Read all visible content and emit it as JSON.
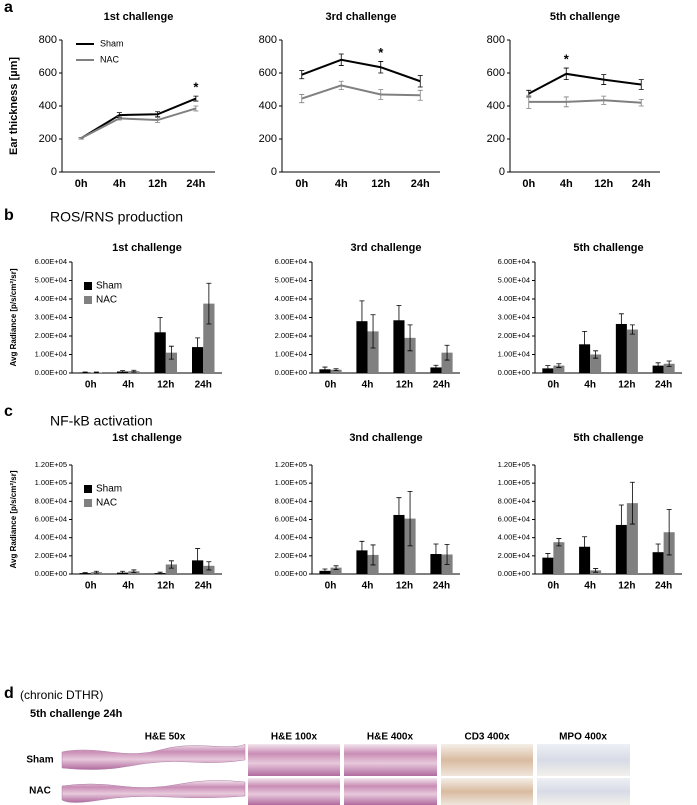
{
  "panels": [
    {
      "letter": "a"
    },
    {
      "letter": "b",
      "title": "ROS/RNS production"
    },
    {
      "letter": "c",
      "title": "NF-kB activation"
    },
    {
      "letter": "d",
      "title": "(chronic DTHR)",
      "subtitle": "5th challenge 24h",
      "columns": [
        "H&E 50x",
        "H&E 100x",
        "H&E 400x",
        "CD3 400x",
        "MPO 400x"
      ],
      "rows": [
        "Sham",
        "NAC"
      ]
    }
  ],
  "chart_data": [
    {
      "type": "line",
      "title": "1st challenge",
      "y_label": "Ear thickness [µm]",
      "categories": [
        "0h",
        "4h",
        "12h",
        "24h"
      ],
      "legend": "upper left",
      "series": [
        {
          "name": "Sham",
          "color": "#000000",
          "values": [
            205,
            345,
            350,
            445
          ],
          "errors": [
            5,
            15,
            15,
            15
          ]
        },
        {
          "name": "NAC",
          "color": "#808080",
          "values": [
            205,
            325,
            315,
            385
          ],
          "errors": [
            5,
            10,
            15,
            15
          ]
        }
      ],
      "ylim": [
        0,
        800
      ],
      "yticks": [
        0,
        200,
        400,
        600,
        800
      ],
      "annotations": [
        {
          "text": "*",
          "x": "24h"
        }
      ]
    },
    {
      "type": "line",
      "title": "3rd challenge",
      "categories": [
        "0h",
        "4h",
        "12h",
        "24h"
      ],
      "series": [
        {
          "color": "#000000",
          "values": [
            590,
            680,
            635,
            550
          ],
          "errors": [
            25,
            35,
            35,
            35
          ]
        },
        {
          "color": "#808080",
          "values": [
            445,
            525,
            470,
            465
          ],
          "errors": [
            25,
            25,
            30,
            30
          ]
        }
      ],
      "ylim": [
        0,
        800
      ],
      "yticks": [
        0,
        200,
        400,
        600,
        800
      ],
      "annotations": [
        {
          "text": "*",
          "x": "12h"
        }
      ]
    },
    {
      "type": "line",
      "title": "5th challenge",
      "categories": [
        "0h",
        "4h",
        "12h",
        "24h"
      ],
      "series": [
        {
          "color": "#000000",
          "values": [
            475,
            595,
            560,
            530
          ],
          "errors": [
            20,
            35,
            30,
            30
          ]
        },
        {
          "color": "#808080",
          "values": [
            425,
            425,
            435,
            420
          ],
          "errors": [
            40,
            30,
            25,
            20
          ]
        }
      ],
      "ylim": [
        0,
        800
      ],
      "yticks": [
        0,
        200,
        400,
        600,
        800
      ],
      "annotations": [
        {
          "text": "*",
          "x": "4h"
        }
      ]
    },
    {
      "type": "bar",
      "title": "1st challenge",
      "y_label": "Avg Radiance [p/s/cm²/sr]",
      "categories": [
        "0h",
        "4h",
        "12h",
        "24h"
      ],
      "legend": "upper left",
      "series": [
        {
          "name": "Sham",
          "color": "#000000",
          "values": [
            300,
            800,
            22000,
            14000
          ],
          "errors": [
            200,
            500,
            8000,
            5000
          ]
        },
        {
          "name": "NAC",
          "color": "#808080",
          "values": [
            300,
            1000,
            11000,
            37500
          ],
          "errors": [
            200,
            500,
            3500,
            11000
          ]
        }
      ],
      "ylim": [
        0,
        60000
      ],
      "yticks": [
        {
          "value": 0,
          "label": "0.00E+00"
        },
        {
          "value": 10000,
          "label": "1.00E+04"
        },
        {
          "value": 20000,
          "label": "2.00E+04"
        },
        {
          "value": 30000,
          "label": "3.00E+04"
        },
        {
          "value": 40000,
          "label": "4.00E+04"
        },
        {
          "value": 50000,
          "label": "5.00E+04"
        },
        {
          "value": 60000,
          "label": "6.00E+04"
        }
      ]
    },
    {
      "type": "bar",
      "title": "3rd challenge",
      "categories": [
        "0h",
        "4h",
        "12h",
        "24h"
      ],
      "series": [
        {
          "color": "#000000",
          "values": [
            2000,
            28000,
            28500,
            3000
          ],
          "errors": [
            1200,
            11000,
            8000,
            1200
          ]
        },
        {
          "color": "#808080",
          "values": [
            1800,
            22500,
            19000,
            11000
          ],
          "errors": [
            500,
            9000,
            7000,
            4000
          ]
        }
      ],
      "ylim": [
        0,
        60000
      ],
      "yticks": [
        {
          "value": 0,
          "label": "0.00E+00"
        },
        {
          "value": 10000,
          "label": "1.00E+04"
        },
        {
          "value": 20000,
          "label": "2.00E+04"
        },
        {
          "value": 30000,
          "label": "3.00E+04"
        },
        {
          "value": 40000,
          "label": "4.00E+04"
        },
        {
          "value": 50000,
          "label": "5.00E+04"
        },
        {
          "value": 60000,
          "label": "6.00E+04"
        }
      ]
    },
    {
      "type": "bar",
      "title": "5th challenge",
      "categories": [
        "0h",
        "4h",
        "12h",
        "24h"
      ],
      "series": [
        {
          "color": "#000000",
          "values": [
            2500,
            15500,
            26500,
            4000
          ],
          "errors": [
            1500,
            7000,
            5500,
            1500
          ]
        },
        {
          "color": "#808080",
          "values": [
            4000,
            10000,
            23500,
            5000
          ],
          "errors": [
            1000,
            2000,
            2500,
            1500
          ]
        }
      ],
      "ylim": [
        0,
        60000
      ],
      "yticks": [
        {
          "value": 0,
          "label": "0.00E+00"
        },
        {
          "value": 10000,
          "label": "1.00E+04"
        },
        {
          "value": 20000,
          "label": "2.00E+04"
        },
        {
          "value": 30000,
          "label": "3.00E+04"
        },
        {
          "value": 40000,
          "label": "4.00E+04"
        },
        {
          "value": 50000,
          "label": "5.00E+04"
        },
        {
          "value": 60000,
          "label": "6.00E+04"
        }
      ]
    },
    {
      "type": "bar",
      "title": "1st challenge",
      "y_label": "Avg Radiance [p/s/cm²/sr]",
      "categories": [
        "0h",
        "4h",
        "12h",
        "24h"
      ],
      "legend": "upper left",
      "series": [
        {
          "name": "Sham",
          "color": "#000000",
          "values": [
            1000,
            1500,
            1000,
            15000
          ],
          "errors": [
            500,
            1500,
            1000,
            13000
          ]
        },
        {
          "name": "NAC",
          "color": "#808080",
          "values": [
            2000,
            3000,
            10500,
            9000
          ],
          "errors": [
            1000,
            1500,
            4000,
            4500
          ]
        }
      ],
      "ylim": [
        0,
        120000
      ],
      "yticks": [
        {
          "value": 0,
          "label": "0.00E+00"
        },
        {
          "value": 20000,
          "label": "2.00E+04"
        },
        {
          "value": 40000,
          "label": "4.00E+04"
        },
        {
          "value": 60000,
          "label": "6.00E+04"
        },
        {
          "value": 80000,
          "label": "8.00E+04"
        },
        {
          "value": 100000,
          "label": "1.00E+05"
        },
        {
          "value": 120000,
          "label": "1.20E+05"
        }
      ]
    },
    {
      "type": "bar",
      "title": "3nd challenge",
      "categories": [
        "0h",
        "4h",
        "12h",
        "24h"
      ],
      "series": [
        {
          "color": "#000000",
          "values": [
            3500,
            26000,
            65000,
            22000
          ],
          "errors": [
            2000,
            10000,
            19000,
            11000
          ]
        },
        {
          "color": "#808080",
          "values": [
            7000,
            21000,
            61000,
            21500
          ],
          "errors": [
            2000,
            11000,
            30000,
            11000
          ]
        }
      ],
      "ylim": [
        0,
        120000
      ],
      "yticks": [
        {
          "value": 0,
          "label": "0.00E+00"
        },
        {
          "value": 20000,
          "label": "2.00E+04"
        },
        {
          "value": 40000,
          "label": "4.00E+04"
        },
        {
          "value": 60000,
          "label": "6.00E+04"
        },
        {
          "value": 80000,
          "label": "8.00E+04"
        },
        {
          "value": 100000,
          "label": "1.00E+05"
        },
        {
          "value": 120000,
          "label": "1.20E+05"
        }
      ]
    },
    {
      "type": "bar",
      "title": "5th challenge",
      "categories": [
        "0h",
        "4h",
        "12h",
        "24h"
      ],
      "series": [
        {
          "color": "#000000",
          "values": [
            18000,
            30000,
            54000,
            24000
          ],
          "errors": [
            4500,
            11000,
            22000,
            9000
          ]
        },
        {
          "color": "#808080",
          "values": [
            35000,
            4000,
            78000,
            46000
          ],
          "errors": [
            4000,
            2000,
            23000,
            25000
          ]
        }
      ],
      "ylim": [
        0,
        120000
      ],
      "yticks": [
        {
          "value": 0,
          "label": "0.00E+00"
        },
        {
          "value": 20000,
          "label": "2.00E+04"
        },
        {
          "value": 40000,
          "label": "4.00E+04"
        },
        {
          "value": 60000,
          "label": "6.00E+04"
        },
        {
          "value": 80000,
          "label": "8.00E+04"
        },
        {
          "value": 100000,
          "label": "1.00E+05"
        },
        {
          "value": 120000,
          "label": "1.20E+05"
        }
      ]
    }
  ]
}
